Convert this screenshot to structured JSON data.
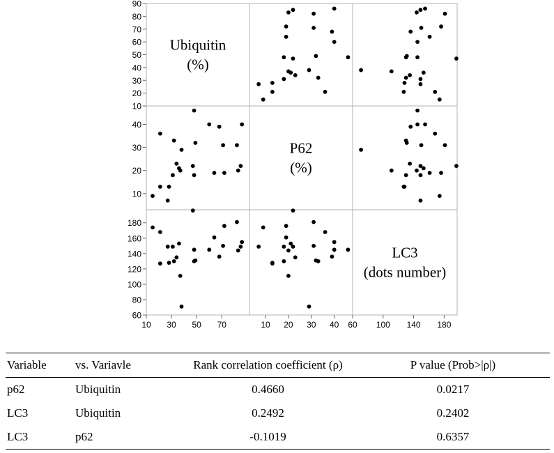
{
  "chart_data": {
    "type": "scatter",
    "variables": [
      {
        "key": "ubiquitin",
        "label_lines": [
          "Ubiquitin",
          "(%)"
        ],
        "range": [
          10,
          90
        ],
        "ticks": [
          10,
          20,
          30,
          40,
          50,
          60,
          70,
          80,
          90
        ],
        "tick_labels": [
          "10",
          "20",
          "30",
          "40",
          "50",
          "60",
          "70",
          "80",
          "90"
        ]
      },
      {
        "key": "p62",
        "label_lines": [
          "P62",
          "(%)"
        ],
        "range": [
          3,
          48
        ],
        "ticks": [
          10,
          20,
          30,
          40
        ],
        "tick_labels": [
          "10",
          "20",
          "30",
          "40"
        ]
      },
      {
        "key": "lc3",
        "label_lines": [
          "LC3",
          "(dots number)"
        ],
        "range": [
          60,
          197
        ],
        "ticks": [
          60,
          80,
          100,
          120,
          140,
          160,
          180
        ],
        "tick_labels": [
          "60",
          "80",
          "100",
          "120",
          "140",
          "160",
          "180"
        ]
      }
    ],
    "x_axes": [
      {
        "range": [
          10,
          92
        ],
        "ticks": [
          10,
          30,
          50,
          70
        ],
        "tick_labels": [
          "10",
          "30",
          "50",
          "70"
        ]
      },
      {
        "range": [
          3,
          48
        ],
        "ticks": [
          10,
          20,
          30,
          40
        ],
        "tick_labels": [
          "10",
          "20",
          "30",
          "40"
        ]
      },
      {
        "range": [
          60,
          197
        ],
        "ticks": [
          60,
          100,
          140,
          180
        ],
        "tick_labels": [
          "60",
          "100",
          "140",
          "180"
        ]
      }
    ],
    "points": [
      {
        "ubiquitin": 15,
        "p62": 9,
        "lc3": 174
      },
      {
        "ubiquitin": 21,
        "p62": 36,
        "lc3": 168
      },
      {
        "ubiquitin": 21,
        "p62": 13,
        "lc3": 127
      },
      {
        "ubiquitin": 27,
        "p62": 7,
        "lc3": 149
      },
      {
        "ubiquitin": 28,
        "p62": 13,
        "lc3": 128
      },
      {
        "ubiquitin": 31,
        "p62": 18,
        "lc3": 149
      },
      {
        "ubiquitin": 32,
        "p62": 33,
        "lc3": 130
      },
      {
        "ubiquitin": 34,
        "p62": 23,
        "lc3": 135
      },
      {
        "ubiquitin": 36,
        "p62": 21,
        "lc3": 153
      },
      {
        "ubiquitin": 37,
        "p62": 20,
        "lc3": 111
      },
      {
        "ubiquitin": 38,
        "p62": 29,
        "lc3": 71
      },
      {
        "ubiquitin": 47,
        "p62": 22,
        "lc3": 196
      },
      {
        "ubiquitin": 48,
        "p62": 18,
        "lc3": 130
      },
      {
        "ubiquitin": 48,
        "p62": 46,
        "lc3": 145
      },
      {
        "ubiquitin": 49,
        "p62": 32,
        "lc3": 131
      },
      {
        "ubiquitin": 60,
        "p62": 40,
        "lc3": 145
      },
      {
        "ubiquitin": 64,
        "p62": 19,
        "lc3": 161
      },
      {
        "ubiquitin": 68,
        "p62": 39,
        "lc3": 136
      },
      {
        "ubiquitin": 72,
        "p62": 19,
        "lc3": 176
      },
      {
        "ubiquitin": 71,
        "p62": 31,
        "lc3": 150
      },
      {
        "ubiquitin": 82,
        "p62": 31,
        "lc3": 181
      },
      {
        "ubiquitin": 83,
        "p62": 20,
        "lc3": 144
      },
      {
        "ubiquitin": 85,
        "p62": 22,
        "lc3": 149
      },
      {
        "ubiquitin": 86,
        "p62": 40,
        "lc3": 155
      }
    ]
  },
  "table": {
    "headers": [
      "Variable",
      "vs. Variavle",
      "Rank correlation coefficient (ρ)",
      "P value (Prob>|ρ|)"
    ],
    "rows": [
      [
        "p62",
        "Ubiquitin",
        "0.4660",
        "0.0217"
      ],
      [
        "LC3",
        "Ubiquitin",
        "0.2492",
        "0.2402"
      ],
      [
        "LC3",
        "p62",
        "-0.1019",
        "0.6357"
      ]
    ]
  }
}
